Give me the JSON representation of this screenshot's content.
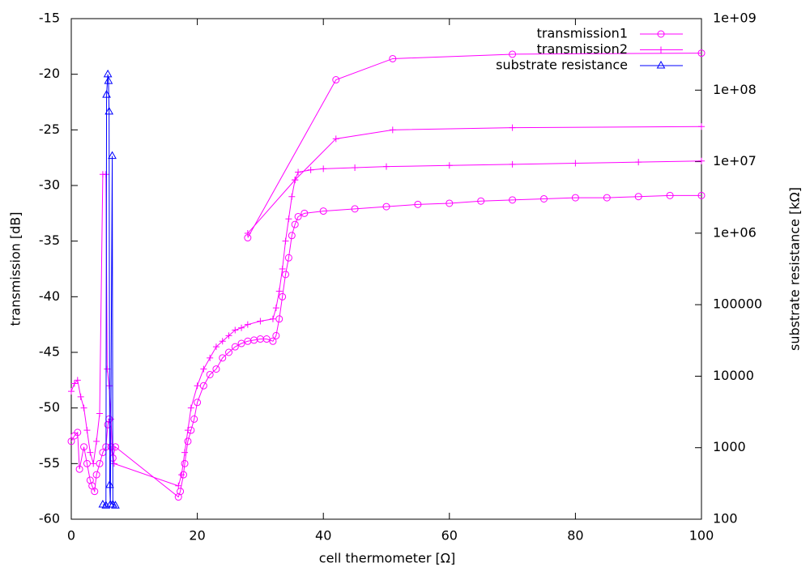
{
  "chart_data": {
    "type": "line",
    "xlabel": "cell thermometer [Ω]",
    "ylabel": "transmission [dB]",
    "y2label": "substrate resistance [kΩ]",
    "xlim": [
      0,
      100
    ],
    "xticks": [
      0,
      20,
      40,
      60,
      80,
      100
    ],
    "ylim": [
      -60,
      -15
    ],
    "yticks": [
      -60,
      -55,
      -50,
      -45,
      -40,
      -35,
      -30,
      -25,
      -20,
      -15
    ],
    "y2lim": [
      100,
      1000000000
    ],
    "y2log": true,
    "y2ticks": [
      100,
      1000,
      10000,
      100000,
      {
        "value": 1000000,
        "label": "1e+06"
      },
      {
        "value": 10000000,
        "label": "1e+07"
      },
      {
        "value": 100000000,
        "label": "1e+08"
      },
      {
        "value": 1000000000,
        "label": "1e+09"
      }
    ],
    "legend": "top-right",
    "series": [
      {
        "name": "transmission1",
        "color": "#ff00ff",
        "marker": "circle",
        "x": [
          0,
          0.5,
          1,
          1.3,
          2,
          2.5,
          3,
          3.3,
          3.7,
          4,
          4.5,
          5,
          5.5,
          5.8,
          6,
          6.3,
          6.6,
          7,
          17,
          17.3,
          17.8,
          18,
          18.5,
          19,
          19.5,
          20,
          21,
          22,
          23,
          24,
          25,
          26,
          27,
          28,
          29,
          30,
          31,
          32,
          32.5,
          33,
          33.5,
          34,
          34.5,
          35,
          35.5,
          36,
          37,
          40,
          45,
          50,
          55,
          60,
          65,
          70,
          75,
          80,
          85,
          90,
          95,
          100,
          null,
          28,
          42,
          51,
          70,
          100
        ],
        "values": [
          -53,
          -52.5,
          -52.2,
          -55.5,
          -53.5,
          -55,
          -56.5,
          -57,
          -57.5,
          -56,
          -55,
          -54,
          -53.5,
          -51.5,
          -51,
          -53.5,
          -54.5,
          -53.5,
          -58,
          -57.5,
          -56,
          -55,
          -53,
          -52,
          -51,
          -49.5,
          -48,
          -47,
          -46.5,
          -45.5,
          -45,
          -44.5,
          -44.2,
          -44,
          -43.9,
          -43.8,
          -43.8,
          -44,
          -43.5,
          -42,
          -40,
          -38,
          -36.5,
          -34.5,
          -33.5,
          -32.8,
          -32.5,
          -32.3,
          -32.1,
          -31.9,
          -31.7,
          -31.6,
          -31.4,
          -31.3,
          -31.2,
          -31.1,
          -31.1,
          -31,
          -30.9,
          -30.9,
          null,
          -34.7,
          -20.5,
          -18.6,
          -18.2,
          -18.1
        ]
      },
      {
        "name": "transmission2",
        "color": "#ff00ff",
        "marker": "plus",
        "x": [
          0,
          0.5,
          1,
          1.5,
          2,
          2.5,
          3,
          3.5,
          4,
          4.5,
          5,
          5.5,
          5.7,
          6,
          6.3,
          6.5,
          6.8,
          17,
          17.5,
          18,
          18.5,
          19,
          20,
          21,
          22,
          23,
          24,
          25,
          26,
          27,
          28,
          30,
          32,
          32.5,
          33,
          33.5,
          34,
          34.5,
          35,
          35.5,
          36,
          38,
          40,
          45,
          50,
          60,
          70,
          80,
          90,
          100,
          null,
          28,
          35.5,
          42,
          51,
          70,
          100
        ],
        "values": [
          -48.5,
          -47.8,
          -47.5,
          -49,
          -50,
          -52,
          -54,
          -55,
          -53,
          -50.5,
          -29,
          -29,
          -46.5,
          -48,
          -51,
          -53.5,
          -55,
          -57,
          -56,
          -54,
          -52,
          -50,
          -48,
          -46.5,
          -45.5,
          -44.5,
          -44,
          -43.5,
          -43,
          -42.8,
          -42.5,
          -42.2,
          -42,
          -41,
          -39.5,
          -37.5,
          -35,
          -33,
          -31,
          -29.5,
          -28.8,
          -28.6,
          -28.5,
          -28.4,
          -28.3,
          -28.2,
          -28.1,
          -28,
          -27.9,
          -27.8,
          null,
          -34.3,
          -29.5,
          -25.8,
          -25,
          -24.8,
          -24.7
        ]
      },
      {
        "name": "substrate resistance",
        "color": "#0000ff",
        "marker": "triangle",
        "axis": "y2",
        "x": [
          5,
          5.5,
          5.6,
          5.8,
          5.9,
          6,
          6.1,
          6.2,
          6.5,
          6.6,
          7
        ],
        "values": [
          160,
          155,
          86000000,
          166000000,
          134000000,
          50000000,
          300,
          160,
          12000000,
          160,
          155
        ]
      }
    ]
  }
}
